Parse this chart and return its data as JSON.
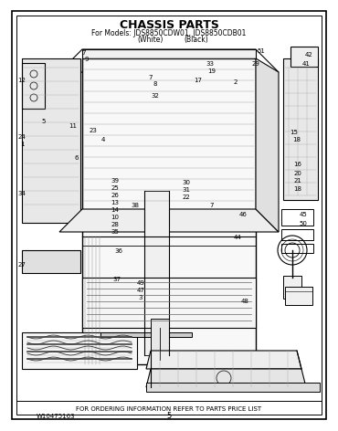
{
  "title_line1": "CHASSIS PARTS",
  "title_line2": "For Models: JDS8850CDW01, JDS8850CDB01",
  "title_line3_left": "(White)",
  "title_line3_right": "(Black)",
  "footer_text": "FOR ORDERING INFORMATION REFER TO PARTS PRICE LIST",
  "part_number": "W10475163",
  "page_number": "5",
  "bg_color": "#ffffff",
  "border_color": "#000000",
  "text_color": "#000000",
  "title_color": "#000000",
  "lw": 0.7
}
